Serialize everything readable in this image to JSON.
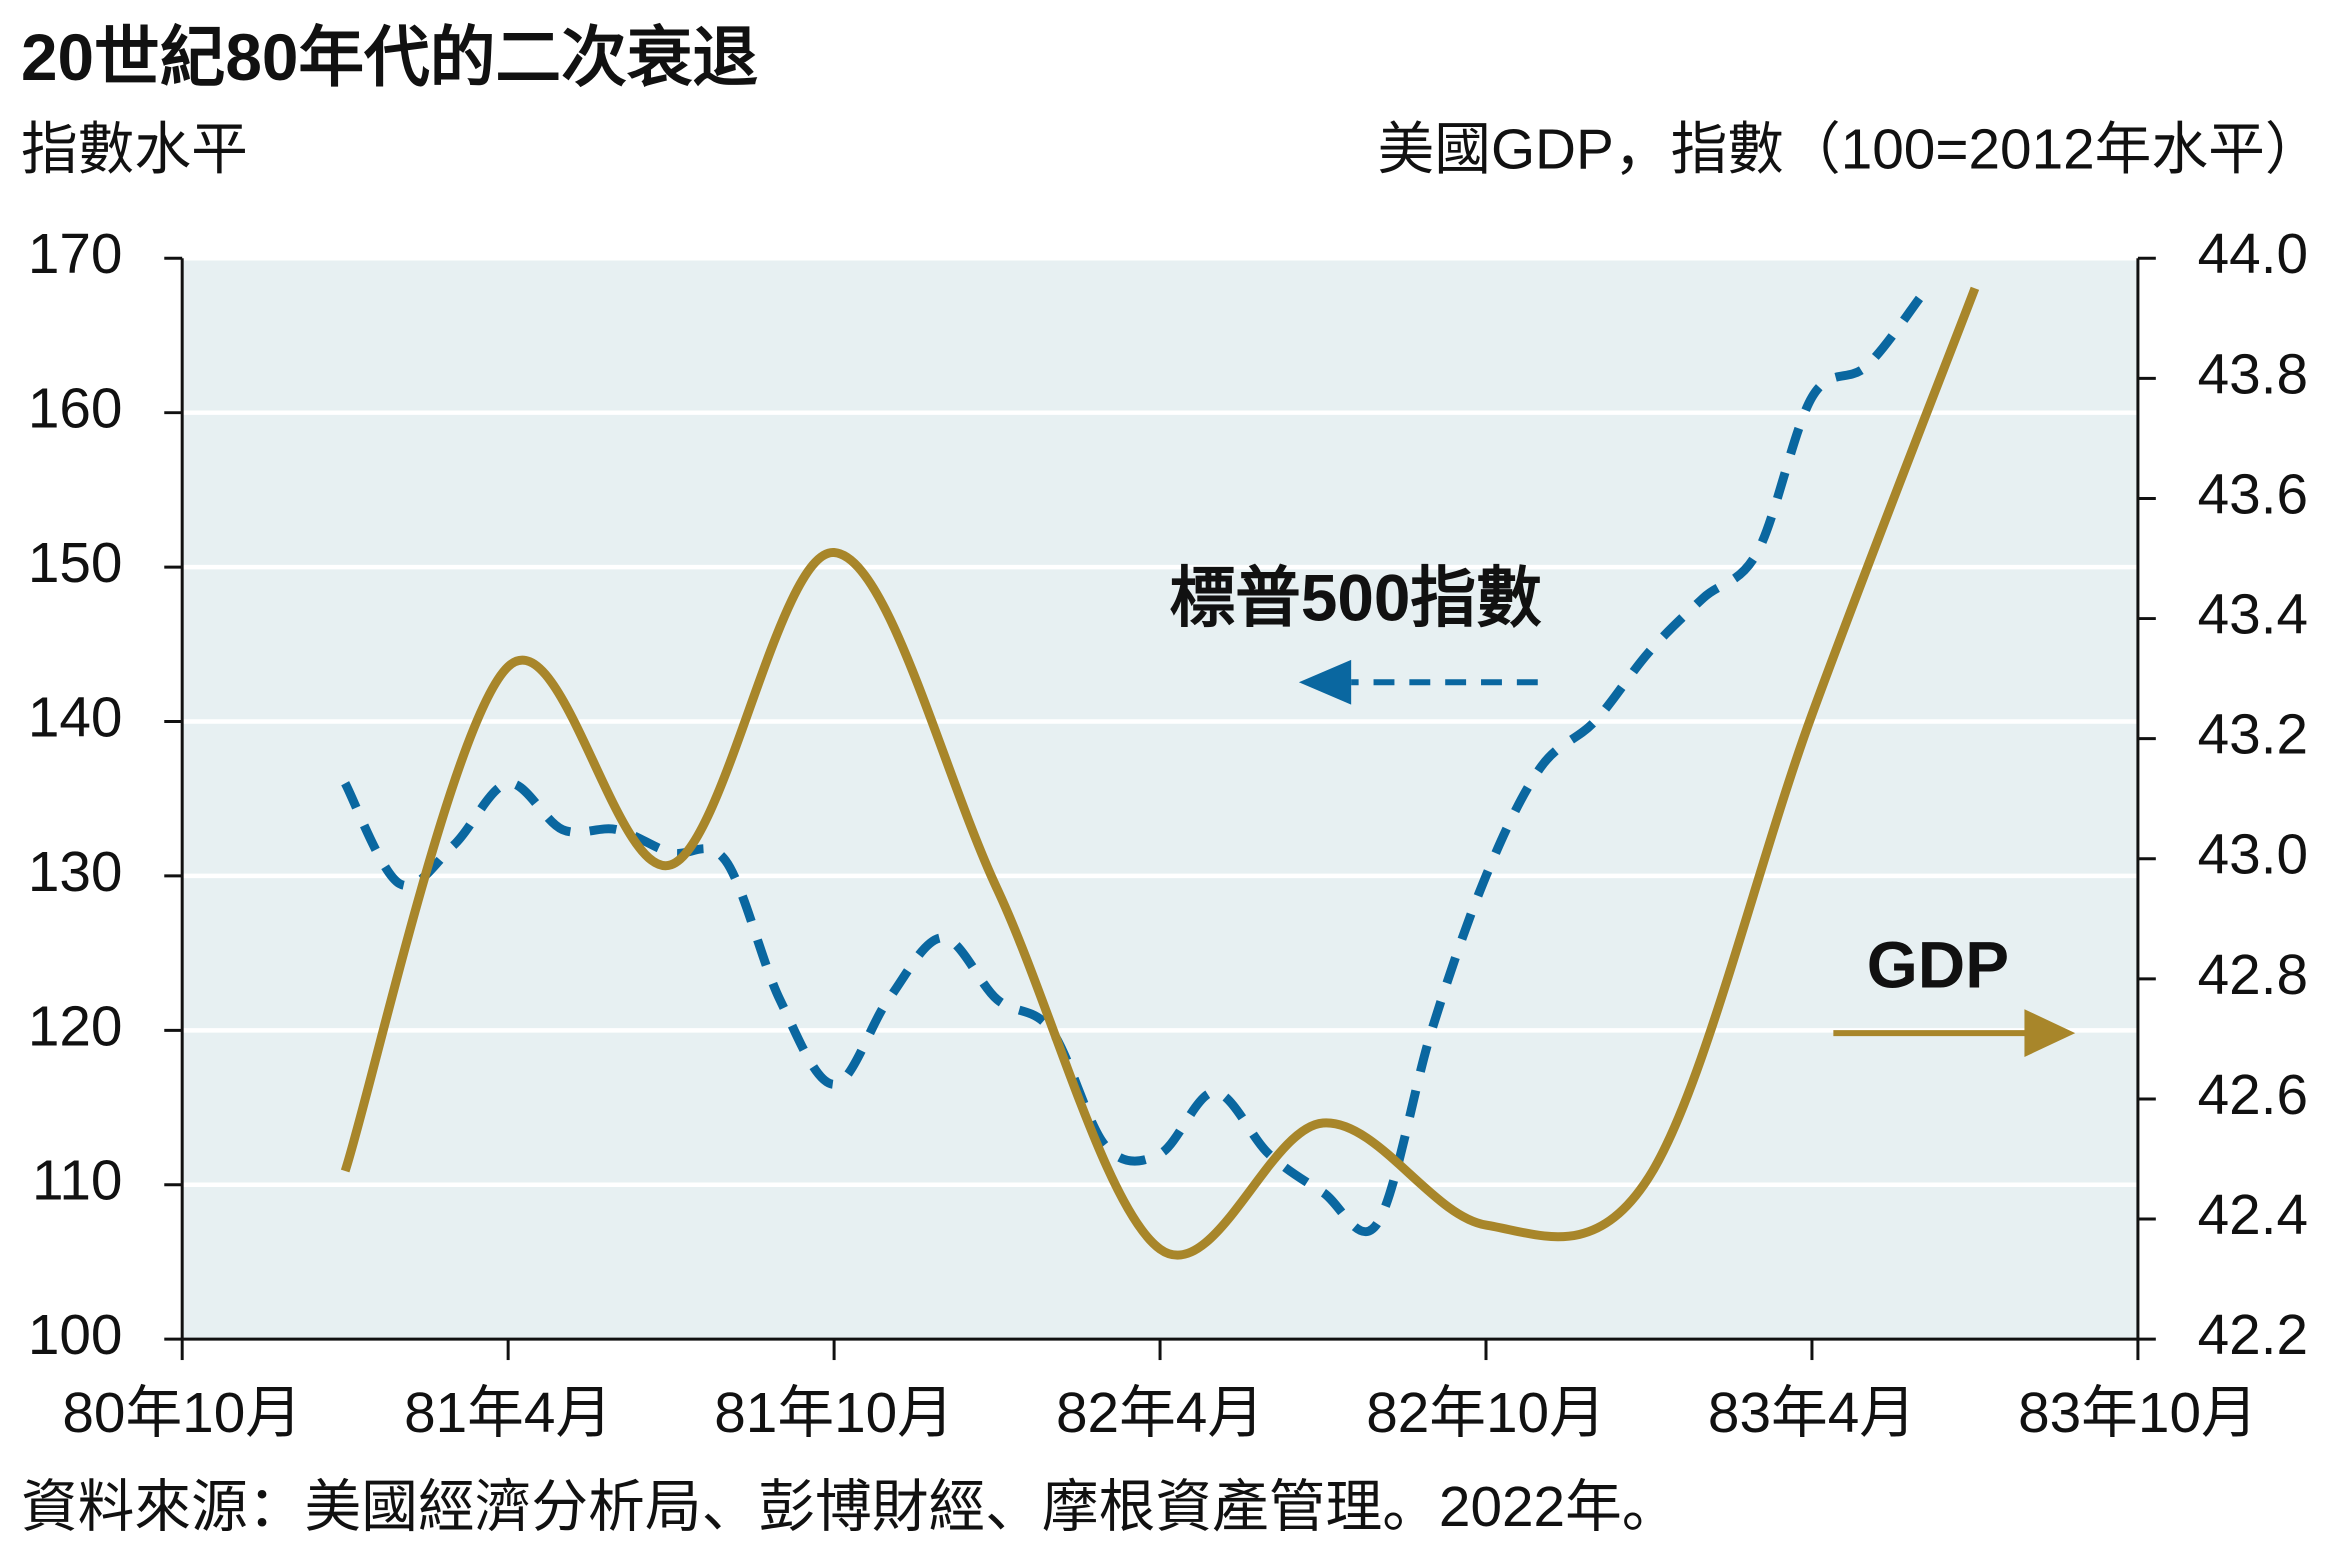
{
  "chart_data": {
    "type": "line",
    "title": "20世紀80年代的二次衰退",
    "y_label": "指數水平",
    "y2_label": "美國GDP，指數（100=2012年水平）",
    "source": "資料來源：美國經濟分析局、彭博財經、摩根資產管理。2022年。",
    "annotations": [
      "標普500指數",
      "GDP"
    ],
    "xlim": [
      "80年10月",
      "83年10月"
    ],
    "xticks": [
      "80年10月",
      "81年4月",
      "81年10月",
      "82年4月",
      "82年10月",
      "83年4月",
      "83年10月"
    ],
    "ylim": [
      100,
      170
    ],
    "yticks": [
      100,
      110,
      120,
      130,
      140,
      150,
      160,
      170
    ],
    "y2lim": [
      42.2,
      44
    ],
    "y2ticks": [
      42.2,
      42.4,
      42.6,
      42.8,
      {
        "value": 43,
        "label": "43.0"
      },
      43.2,
      43.4,
      43.6,
      43.8,
      {
        "value": 44,
        "label": "44.0"
      }
    ],
    "grid": true,
    "series": [
      {
        "name": "標普500指數",
        "color": "#0a67a0",
        "dash": true,
        "x": [
          "81年1月",
          "81年2月",
          "81年3月",
          "81年4月",
          "81年5月",
          "81年6月",
          "81年7月",
          "81年8月",
          "81年9月",
          "81年10月",
          "81年11月",
          "81年12月",
          "82年1月",
          "82年2月",
          "82年3月",
          "82年4月",
          "82年5月",
          "82年6月",
          "82年7月",
          "82年8月",
          "82年9月",
          "82年10月",
          "82年11月",
          "82年12月",
          "83年1月",
          "83年2月",
          "83年3月",
          "83年4月",
          "83年5月",
          "83年6月"
        ],
        "values": [
          136,
          129.5,
          132,
          136,
          133,
          133,
          131.5,
          131,
          122,
          116.5,
          122,
          126,
          122,
          120,
          112.5,
          112,
          116,
          112,
          109.5,
          107.5,
          120,
          130,
          137,
          140,
          144.5,
          148,
          151,
          161,
          163,
          167.5
        ]
      },
      {
        "name": "GDP",
        "color": "#a8862a",
        "axis": "y2",
        "x": [
          "81年1月",
          "81年4月",
          "81年7月",
          "81年10月",
          "82年1月",
          "82年4月",
          "82年7月",
          "82年10月",
          "83年1月",
          "83年4月",
          "83年7月"
        ],
        "values": [
          42.48,
          43.32,
          42.99,
          43.51,
          42.95,
          42.35,
          42.56,
          42.39,
          42.47,
          43.24,
          43.95
        ]
      }
    ]
  }
}
